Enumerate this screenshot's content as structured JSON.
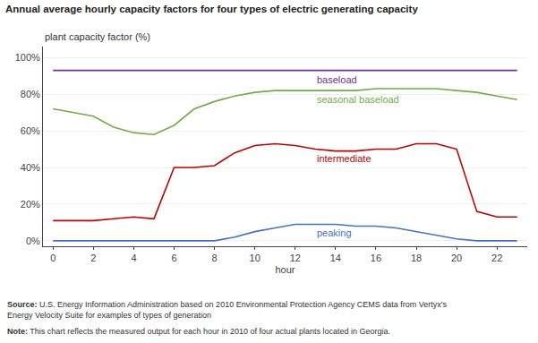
{
  "chart_data": {
    "type": "line",
    "title": "Annual average hourly capacity factors for four types of electric generating capacity",
    "y_label": "plant capacity factor (%)",
    "x_label": "hour",
    "x": [
      0,
      1,
      2,
      3,
      4,
      5,
      6,
      7,
      8,
      9,
      10,
      11,
      12,
      13,
      14,
      15,
      16,
      17,
      18,
      19,
      20,
      21,
      22,
      23
    ],
    "series": [
      {
        "name": "baseload",
        "color": "#7030a0",
        "values": [
          93,
          93,
          93,
          93,
          93,
          93,
          93,
          93,
          93,
          93,
          93,
          93,
          93,
          93,
          93,
          93,
          93,
          93,
          93,
          93,
          93,
          93,
          93,
          93
        ]
      },
      {
        "name": "seasonal baseload",
        "color": "#70ad47",
        "values": [
          72,
          70,
          68,
          62,
          59,
          58,
          63,
          72,
          76,
          79,
          81,
          82,
          82,
          82,
          82,
          82,
          83,
          83,
          83,
          83,
          82,
          81,
          79,
          77
        ]
      },
      {
        "name": "intermediate",
        "color": "#c00000",
        "values": [
          11,
          11,
          11,
          12,
          13,
          12,
          40,
          40,
          41,
          48,
          52,
          53,
          52,
          50,
          49,
          49,
          50,
          50,
          53,
          53,
          50,
          16,
          13,
          13
        ]
      },
      {
        "name": "peaking",
        "color": "#4472c4",
        "values": [
          0,
          0,
          0,
          0,
          0,
          0,
          0,
          0,
          0,
          2,
          5,
          7,
          9,
          9,
          9,
          8,
          8,
          7,
          5,
          3,
          1,
          0,
          0,
          0
        ]
      }
    ],
    "xlim": [
      -0.5,
      23.5
    ],
    "xticks": [
      0,
      2,
      4,
      6,
      8,
      10,
      12,
      14,
      16,
      18,
      20,
      22
    ],
    "ylim": [
      -3,
      106
    ],
    "yticks": [
      {
        "value": 0,
        "label": "0%"
      },
      {
        "value": 20,
        "label": "20%"
      },
      {
        "value": 40,
        "label": "40%"
      },
      {
        "value": 60,
        "label": "60%"
      },
      {
        "value": 80,
        "label": "80%"
      },
      {
        "value": 100,
        "label": "100%"
      }
    ],
    "grid": true,
    "footer": [
      {
        "label": "Source:",
        "text": "U.S. Energy Information Administration based on 2010 Environmental Protection Agency CEMS data from Vertyx's\nEnergy Velocity Suite for examples of types of generation"
      },
      {
        "label": "Note:",
        "text": "This chart reflects the measured output for each hour in 2010 of four actual plants located in Georgia."
      }
    ]
  }
}
